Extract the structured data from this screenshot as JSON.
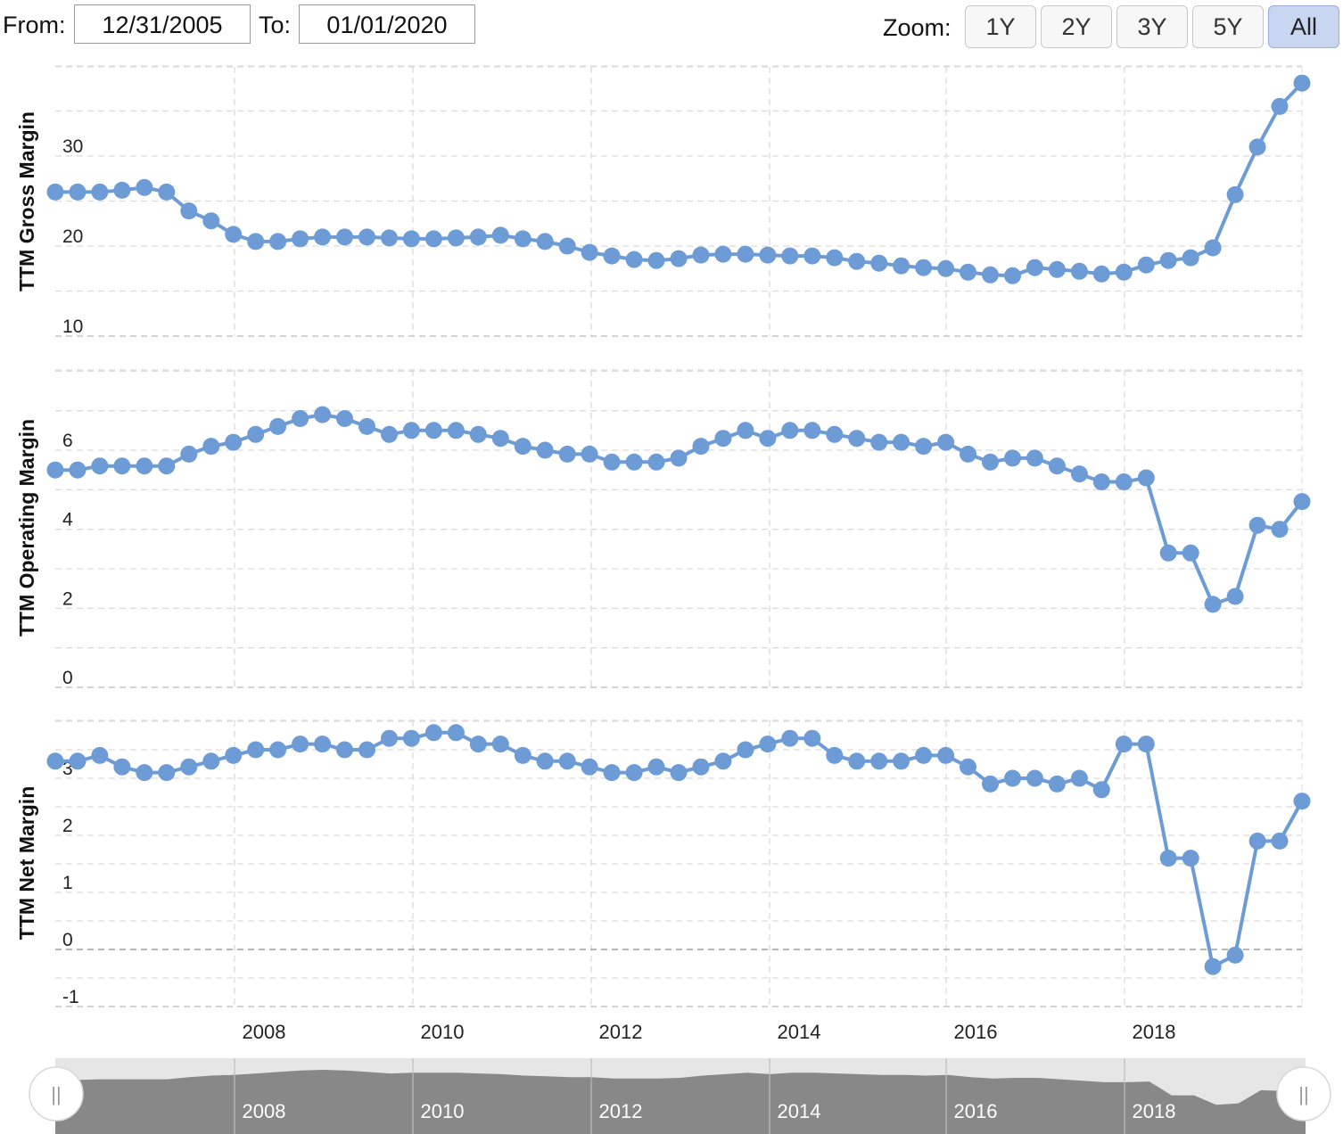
{
  "toolbar": {
    "from_label": "From:",
    "from_value": "12/31/2005",
    "to_label": "To:",
    "to_value": "01/01/2020",
    "zoom_label": "Zoom:",
    "zoom_buttons": [
      "1Y",
      "2Y",
      "3Y",
      "5Y",
      "All"
    ],
    "zoom_active": "All"
  },
  "colors": {
    "series": "#6d9bd6",
    "navigator_fill": "#888888",
    "navigator_bg": "#e6e6e6",
    "active_zoom": "#c9d6f2"
  },
  "chart_data": [
    {
      "type": "line",
      "ylabel": "TTM Gross Margin",
      "yticks": [
        10,
        20,
        30
      ],
      "ylim": [
        10,
        39
      ],
      "x_start": "2006-03-31",
      "x_step": "quarterly",
      "values": [
        26.0,
        26.0,
        26.0,
        26.2,
        26.5,
        26.0,
        23.9,
        22.8,
        21.3,
        20.5,
        20.5,
        20.8,
        21.0,
        21.0,
        21.0,
        20.9,
        20.8,
        20.8,
        20.9,
        21.0,
        21.2,
        20.8,
        20.5,
        20.0,
        19.3,
        18.9,
        18.5,
        18.4,
        18.6,
        19.0,
        19.1,
        19.1,
        19.0,
        18.9,
        18.9,
        18.7,
        18.3,
        18.1,
        17.8,
        17.6,
        17.5,
        17.1,
        16.8,
        16.7,
        17.6,
        17.4,
        17.2,
        16.9,
        17.1,
        17.9,
        18.4,
        18.7,
        19.8,
        25.7,
        31.0,
        35.5,
        38.1
      ]
    },
    {
      "type": "line",
      "ylabel": "TTM Operating Margin",
      "yticks": [
        0,
        2,
        4,
        6
      ],
      "ylim": [
        0,
        8.2
      ],
      "x_start": "2006-03-31",
      "x_step": "quarterly",
      "values": [
        5.5,
        5.5,
        5.6,
        5.6,
        5.6,
        5.6,
        5.9,
        6.1,
        6.2,
        6.4,
        6.6,
        6.8,
        6.9,
        6.8,
        6.6,
        6.4,
        6.5,
        6.5,
        6.5,
        6.4,
        6.3,
        6.1,
        6.0,
        5.9,
        5.9,
        5.7,
        5.7,
        5.7,
        5.8,
        6.1,
        6.3,
        6.5,
        6.3,
        6.5,
        6.5,
        6.4,
        6.3,
        6.2,
        6.2,
        6.1,
        6.2,
        5.9,
        5.7,
        5.8,
        5.8,
        5.6,
        5.4,
        5.2,
        5.2,
        5.3,
        3.4,
        3.4,
        2.1,
        2.3,
        4.1,
        4.0,
        4.7
      ]
    },
    {
      "type": "line",
      "ylabel": "TTM Net Margin",
      "yticks": [
        -1,
        0,
        1,
        2,
        3
      ],
      "ylim": [
        -1,
        4
      ],
      "x_start": "2006-03-31",
      "x_step": "quarterly",
      "values": [
        3.3,
        3.3,
        3.4,
        3.2,
        3.1,
        3.1,
        3.2,
        3.3,
        3.4,
        3.5,
        3.5,
        3.6,
        3.6,
        3.5,
        3.5,
        3.7,
        3.7,
        3.8,
        3.8,
        3.6,
        3.6,
        3.4,
        3.3,
        3.3,
        3.2,
        3.1,
        3.1,
        3.2,
        3.1,
        3.2,
        3.3,
        3.5,
        3.6,
        3.7,
        3.7,
        3.4,
        3.3,
        3.3,
        3.3,
        3.4,
        3.4,
        3.2,
        2.9,
        3.0,
        3.0,
        2.9,
        3.0,
        2.8,
        3.6,
        3.6,
        1.6,
        1.6,
        -0.3,
        -0.1,
        1.9,
        1.9,
        2.6
      ]
    }
  ],
  "x_axis": {
    "ticks": [
      "2008",
      "2010",
      "2012",
      "2014",
      "2016",
      "2018"
    ]
  },
  "navigator": {
    "ticks": [
      "2008",
      "2010",
      "2012",
      "2014",
      "2016",
      "2018"
    ],
    "handle_glyph": "||"
  }
}
